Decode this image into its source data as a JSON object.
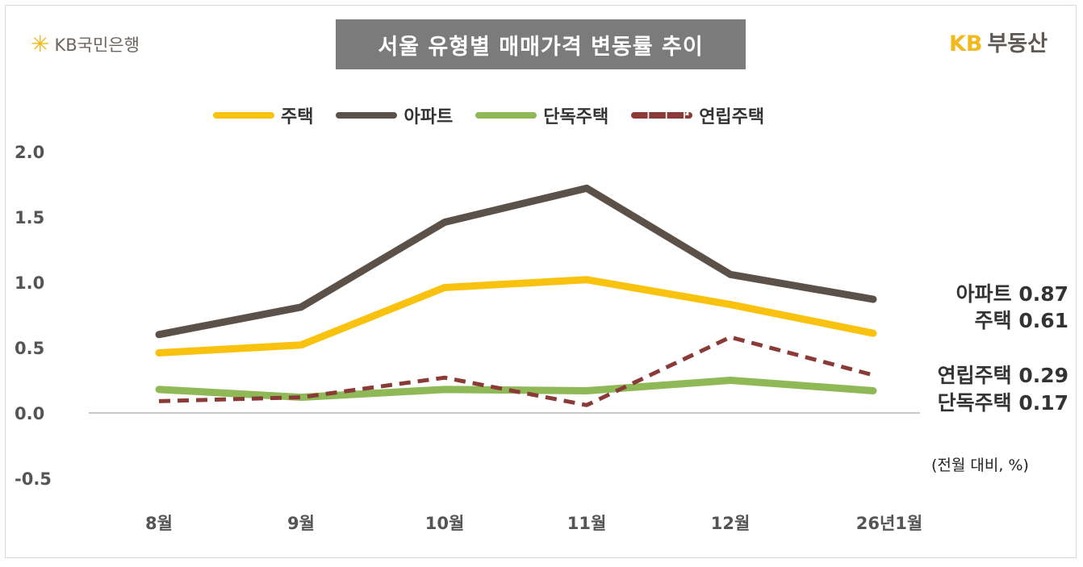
{
  "header": {
    "left_logo": "KB국민은행",
    "right_logo_kb": "KB",
    "right_logo_text": "부동산"
  },
  "chart_data": {
    "type": "line",
    "title": "서울 유형별 매매가격 변동률 추이",
    "unit_note": "(전월 대비, %)",
    "categories": [
      "8월",
      "9월",
      "10월",
      "11월",
      "12월",
      "26년1월"
    ],
    "ylim": [
      -0.5,
      2.0
    ],
    "yticks": [
      "2.0",
      "1.5",
      "1.0",
      "0.5",
      "0.0",
      "-0.5"
    ],
    "ytick_values": [
      2.0,
      1.5,
      1.0,
      0.5,
      0.0,
      -0.5
    ],
    "grid": false,
    "legend_position": "top",
    "series": [
      {
        "name": "주택",
        "color": "#f9c20f",
        "dash": false,
        "values": [
          0.46,
          0.52,
          0.96,
          1.02,
          0.83,
          0.61
        ],
        "end_label": "주택 0.61"
      },
      {
        "name": "아파트",
        "color": "#5b5149",
        "dash": false,
        "values": [
          0.6,
          0.81,
          1.46,
          1.72,
          1.06,
          0.87
        ],
        "end_label": "아파트 0.87"
      },
      {
        "name": "단독주택",
        "color": "#8fb857",
        "dash": false,
        "values": [
          0.18,
          0.12,
          0.18,
          0.17,
          0.25,
          0.17
        ],
        "end_label": "단독주택 0.17"
      },
      {
        "name": "연립주택",
        "color": "#8a3a37",
        "dash": true,
        "values": [
          0.09,
          0.12,
          0.27,
          0.06,
          0.58,
          0.29
        ],
        "end_label": "연립주택 0.29"
      }
    ]
  }
}
